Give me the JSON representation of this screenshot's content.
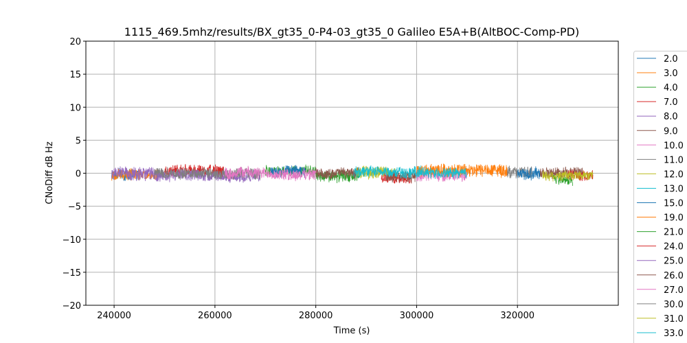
{
  "chart_data": {
    "type": "line",
    "title": "1115_469.5mhz/results/BX_gt35_0-P4-03_gt35_0 Galileo E5A+B(AltBOC-Comp-PD)",
    "xlabel": "Time (s)",
    "ylabel": "CNoDiff dB Hz",
    "xlim": [
      234400,
      340000
    ],
    "ylim": [
      -20,
      20
    ],
    "xticks": [
      240000,
      260000,
      280000,
      300000,
      320000
    ],
    "xtick_labels": [
      "240000",
      "260000",
      "280000",
      "300000",
      "320000"
    ],
    "yticks": [
      20,
      15,
      10,
      5,
      0,
      -5,
      -10,
      -15,
      -20
    ],
    "ytick_labels": [
      "20",
      "15",
      "10",
      "5",
      "0",
      "−5",
      "−10",
      "−15",
      "−20"
    ],
    "grid": true,
    "legend_position": "outside-right",
    "legend": [
      {
        "label": "2.0",
        "color": "#1f77b4"
      },
      {
        "label": "3.0",
        "color": "#ff7f0e"
      },
      {
        "label": "4.0",
        "color": "#2ca02c"
      },
      {
        "label": "7.0",
        "color": "#d62728"
      },
      {
        "label": "8.0",
        "color": "#9467bd"
      },
      {
        "label": "9.0",
        "color": "#8c564b"
      },
      {
        "label": "10.0",
        "color": "#e377c2"
      },
      {
        "label": "11.0",
        "color": "#7f7f7f"
      },
      {
        "label": "12.0",
        "color": "#bcbd22"
      },
      {
        "label": "13.0",
        "color": "#17becf"
      },
      {
        "label": "15.0",
        "color": "#1f77b4"
      },
      {
        "label": "19.0",
        "color": "#ff7f0e"
      },
      {
        "label": "21.0",
        "color": "#2ca02c"
      },
      {
        "label": "24.0",
        "color": "#d62728"
      },
      {
        "label": "25.0",
        "color": "#9467bd"
      },
      {
        "label": "26.0",
        "color": "#8c564b"
      },
      {
        "label": "27.0",
        "color": "#e377c2"
      },
      {
        "label": "30.0",
        "color": "#7f7f7f"
      },
      {
        "label": "31.0",
        "color": "#bcbd22"
      },
      {
        "label": "33.0",
        "color": "#17becf"
      }
    ],
    "series": [
      {
        "name": "2.0",
        "color": "#1f77b4",
        "start": 239500,
        "end": 245000,
        "mean": -0.3,
        "amp": 1.1
      },
      {
        "name": "3.0",
        "color": "#ff7f0e",
        "start": 239500,
        "end": 249000,
        "mean": -0.2,
        "amp": 1.0
      },
      {
        "name": "8.0",
        "color": "#9467bd",
        "start": 239500,
        "end": 248000,
        "mean": 0.0,
        "amp": 1.2
      },
      {
        "name": "7.0",
        "color": "#d62728",
        "start": 250000,
        "end": 262000,
        "mean": 0.3,
        "amp": 1.1
      },
      {
        "name": "25.0",
        "color": "#9467bd",
        "start": 248000,
        "end": 269000,
        "mean": -0.5,
        "amp": 1.0
      },
      {
        "name": "11.0",
        "color": "#7f7f7f",
        "start": 248000,
        "end": 269000,
        "mean": 0.0,
        "amp": 1.0
      },
      {
        "name": "4.0",
        "color": "#2ca02c",
        "start": 270000,
        "end": 280000,
        "mean": 0.4,
        "amp": 1.0
      },
      {
        "name": "15.0",
        "color": "#1f77b4",
        "start": 271000,
        "end": 278000,
        "mean": 0.3,
        "amp": 1.0
      },
      {
        "name": "10.0",
        "color": "#e377c2",
        "start": 262000,
        "end": 281000,
        "mean": 0.0,
        "amp": 1.0
      },
      {
        "name": "21.0",
        "color": "#2ca02c",
        "start": 280000,
        "end": 289000,
        "mean": -0.4,
        "amp": 1.0
      },
      {
        "name": "9.0",
        "color": "#8c564b",
        "start": 280000,
        "end": 289000,
        "mean": 0.0,
        "amp": 0.9
      },
      {
        "name": "12.0",
        "color": "#bcbd22",
        "start": 288000,
        "end": 296000,
        "mean": 0.2,
        "amp": 1.1
      },
      {
        "name": "24.0",
        "color": "#d62728",
        "start": 293000,
        "end": 299000,
        "mean": -0.8,
        "amp": 0.9
      },
      {
        "name": "26.0",
        "color": "#8c564b",
        "start": 294000,
        "end": 300000,
        "mean": -0.4,
        "amp": 1.0
      },
      {
        "name": "13.0",
        "color": "#17becf",
        "start": 287500,
        "end": 301000,
        "mean": 0.3,
        "amp": 1.0
      },
      {
        "name": "27.0",
        "color": "#e377c2",
        "start": 300000,
        "end": 310000,
        "mean": -0.2,
        "amp": 1.0
      },
      {
        "name": "19.0",
        "color": "#ff7f0e",
        "start": 300000,
        "end": 318000,
        "mean": 0.4,
        "amp": 1.2
      },
      {
        "name": "33.0",
        "color": "#17becf",
        "start": 300000,
        "end": 310000,
        "mean": 0.0,
        "amp": 0.9
      },
      {
        "name": "30.0",
        "color": "#7f7f7f",
        "start": 318000,
        "end": 323000,
        "mean": 0.2,
        "amp": 1.0
      },
      {
        "name": "2.0",
        "color": "#1f77b4",
        "start": 320000,
        "end": 324500,
        "mean": 0.0,
        "amp": 1.1
      },
      {
        "name": "26.0",
        "color": "#8c564b",
        "start": 324500,
        "end": 333000,
        "mean": 0.0,
        "amp": 1.0
      },
      {
        "name": "21.0",
        "color": "#2ca02c",
        "start": 327000,
        "end": 331000,
        "mean": -1.0,
        "amp": 0.8
      },
      {
        "name": "7.0",
        "color": "#d62728",
        "start": 330000,
        "end": 335000,
        "mean": -0.2,
        "amp": 0.9
      },
      {
        "name": "31.0",
        "color": "#bcbd22",
        "start": 325000,
        "end": 335000,
        "mean": -0.3,
        "amp": 0.9
      }
    ]
  }
}
